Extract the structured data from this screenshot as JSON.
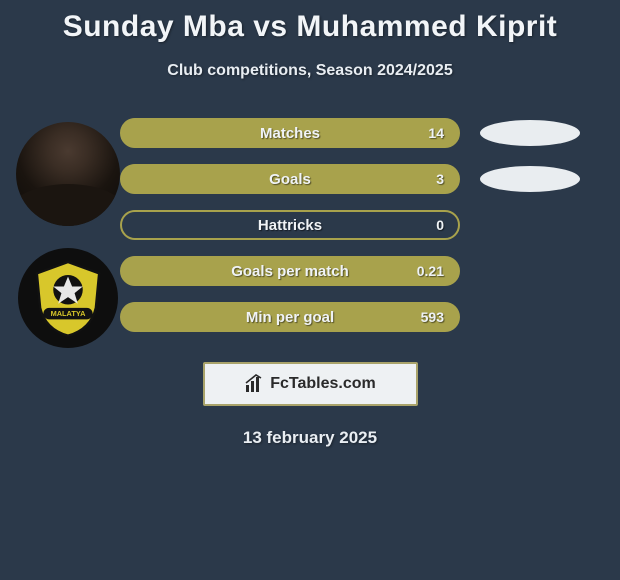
{
  "title": "Sunday Mba vs Muhammed Kiprit",
  "subtitle": "Club competitions, Season 2024/2025",
  "date": "13 february 2025",
  "brand": {
    "text": "FcTables.com"
  },
  "colors": {
    "background": "#2b394a",
    "pill_border": "#a8a24c",
    "pill_fill": "#a8a24c",
    "ellipse": "#e9edf0",
    "text": "#f0f3f6"
  },
  "typography": {
    "title_fontsize": 30,
    "subtitle_fontsize": 16,
    "pill_label_fontsize": 15,
    "pill_value_fontsize": 14,
    "date_fontsize": 17
  },
  "stats": [
    {
      "label": "Matches",
      "value": "14",
      "fill_pct": 100,
      "show_right_ellipse": true
    },
    {
      "label": "Goals",
      "value": "3",
      "fill_pct": 100,
      "show_right_ellipse": true
    },
    {
      "label": "Hattricks",
      "value": "0",
      "fill_pct": 0,
      "show_right_ellipse": false
    },
    {
      "label": "Goals per match",
      "value": "0.21",
      "fill_pct": 100,
      "show_right_ellipse": false
    },
    {
      "label": "Min per goal",
      "value": "593",
      "fill_pct": 100,
      "show_right_ellipse": false
    }
  ],
  "left_graphics": {
    "player_present": true,
    "club_badge_present": true,
    "club_badge_colors": {
      "outer": "#0e0e0e",
      "shield": "#d8c72b",
      "accent": "#e7e7e7",
      "text": "#111111"
    },
    "club_badge_text": "MALATYA"
  }
}
